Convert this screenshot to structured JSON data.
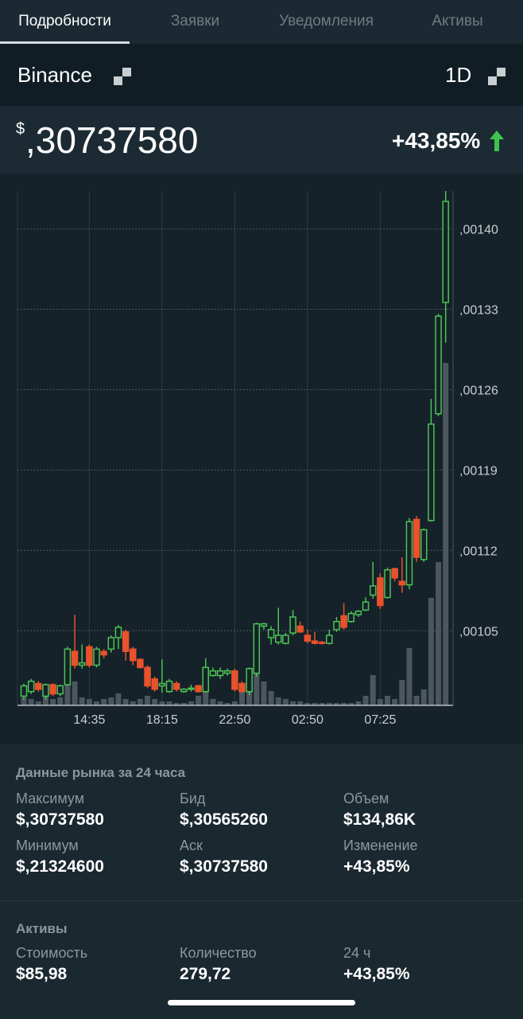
{
  "tabs": [
    "Подробности",
    "Заявки",
    "Уведомления",
    "Активы"
  ],
  "exchange": "Binance",
  "interval": "1D",
  "price": {
    "currency": "$",
    "value": ",30737580",
    "change": "+43,85%"
  },
  "chart_data": {
    "type": "candlestick",
    "categories": [
      null,
      null,
      null,
      null,
      null,
      null,
      null,
      null,
      null,
      "14:35",
      null,
      null,
      null,
      null,
      null,
      null,
      null,
      null,
      null,
      "18:15",
      null,
      null,
      null,
      null,
      null,
      null,
      null,
      null,
      null,
      "22:50",
      null,
      null,
      null,
      null,
      null,
      null,
      null,
      null,
      null,
      "02:50",
      null,
      null,
      null,
      null,
      null,
      null,
      null,
      null,
      null,
      "07:25",
      null,
      null,
      null,
      null,
      null,
      null,
      null,
      null,
      null
    ],
    "open": [
      0.000993,
      0.000997,
      0.001004,
      0.000993,
      0.001003,
      0.000995,
      0.001003,
      0.001032,
      0.00102,
      0.001036,
      0.00102,
      0.001032,
      0.001034,
      0.001044,
      0.001049,
      0.001034,
      0.001025,
      0.001018,
      0.001008,
      0.001002,
      0.000997,
      0.001004,
      0.000997,
      0.000999,
      0.001002,
      0.000997,
      0.001011,
      0.001011,
      0.001013,
      0.001015,
      0.001004,
      0.000997,
      0.001013,
      0.001054,
      0.001044,
      0.00104,
      0.001039,
      0.001048,
      0.001054,
      0.001046,
      0.001041,
      0.00104,
      0.001039,
      0.001051,
      0.001063,
      0.001058,
      0.001064,
      0.001068,
      0.001081,
      0.001096,
      0.001079,
      0.001104,
      0.001093,
      0.00109,
      0.001147,
      0.001112,
      0.001146,
      0.001239,
      0.001336
    ],
    "high": [
      0.001004,
      0.001008,
      0.001006,
      0.001004,
      0.001004,
      0.001003,
      0.001036,
      0.001064,
      0.001038,
      0.001038,
      0.001036,
      0.001034,
      0.001046,
      0.001055,
      0.001051,
      0.001036,
      0.001026,
      0.00102,
      0.00101,
      0.001025,
      0.001008,
      0.001006,
      0.001,
      0.001003,
      0.001003,
      0.001026,
      0.001018,
      0.001018,
      0.001017,
      0.001017,
      0.001006,
      0.001018,
      0.001057,
      0.001057,
      0.001054,
      0.00107,
      0.001048,
      0.001068,
      0.001058,
      0.001051,
      0.001049,
      0.001041,
      0.001051,
      0.001062,
      0.001074,
      0.001067,
      0.001068,
      0.001079,
      0.00111,
      0.0011,
      0.001105,
      0.001105,
      0.001114,
      0.001148,
      0.00115,
      0.001139,
      0.001252,
      0.001326,
      0.001433
    ],
    "low": [
      0.00099,
      0.000995,
      0.000997,
      0.00099,
      0.000993,
      0.000993,
      0.001002,
      0.001017,
      0.001017,
      0.001018,
      0.001018,
      0.001026,
      0.001031,
      0.001034,
      0.001024,
      0.00102,
      0.001017,
      0.001,
      0.000997,
      0.000996,
      0.000996,
      0.000997,
      0.000996,
      0.000997,
      0.000996,
      0.000996,
      0.00101,
      0.001008,
      0.001011,
      0.000997,
      0.000996,
      0.000994,
      0.00101,
      0.001051,
      0.001038,
      0.001038,
      0.001038,
      0.001046,
      0.001048,
      0.001039,
      0.001038,
      0.001038,
      0.001038,
      0.001049,
      0.001051,
      0.001057,
      0.001062,
      0.001067,
      0.001078,
      0.001069,
      0.001078,
      0.001093,
      0.001083,
      0.001086,
      0.00111,
      0.00111,
      0.001145,
      0.001237,
      0.001301
    ],
    "close": [
      0.001002,
      0.001006,
      0.000999,
      0.001003,
      0.000995,
      0.001002,
      0.001034,
      0.00102,
      0.001022,
      0.00102,
      0.001034,
      0.001029,
      0.001044,
      0.001053,
      0.001032,
      0.001024,
      0.001018,
      0.001002,
      0.000999,
      0.001004,
      0.001006,
      0.000999,
      0.000999,
      0.001,
      0.000997,
      0.001018,
      0.001015,
      0.001015,
      0.001015,
      0.000999,
      0.000997,
      0.001017,
      0.001056,
      0.001056,
      0.001051,
      0.001046,
      0.001046,
      0.001062,
      0.001049,
      0.001041,
      0.001039,
      0.001039,
      0.001046,
      0.001058,
      0.001053,
      0.001065,
      0.001067,
      0.001075,
      0.001089,
      0.001072,
      0.001103,
      0.001096,
      0.00109,
      0.001145,
      0.001114,
      0.001138,
      0.00123,
      0.001324,
      0.001424
    ],
    "volume": [
      10,
      8,
      5,
      12,
      8,
      10,
      50,
      30,
      10,
      8,
      5,
      8,
      10,
      15,
      8,
      5,
      8,
      12,
      8,
      5,
      5,
      3,
      3,
      5,
      12,
      18,
      8,
      5,
      3,
      5,
      20,
      25,
      40,
      30,
      18,
      10,
      8,
      5,
      5,
      3,
      3,
      3,
      3,
      3,
      3,
      3,
      5,
      12,
      38,
      8,
      12,
      8,
      32,
      72,
      12,
      20,
      135,
      180,
      430
    ],
    "up_color": "#4cc255",
    "down_color": "#e8522c",
    "volume_color": "#4b575d",
    "ylim": [
      0.000985,
      0.001433
    ],
    "yticks": [
      {
        "value": 0.00105,
        "label": ",00105"
      },
      {
        "value": 0.00112,
        "label": ",00112"
      },
      {
        "value": 0.00119,
        "label": ",00119"
      },
      {
        "value": 0.00126,
        "label": ",00126"
      },
      {
        "value": 0.00133,
        "label": ",00133"
      },
      {
        "value": 0.0014,
        "label": ",00140"
      }
    ],
    "grid": true
  },
  "market": {
    "title": "Данные рынка за 24 часа",
    "items": [
      {
        "label": "Максимум",
        "value": "$,30737580"
      },
      {
        "label": "Бид",
        "value": "$,30565260"
      },
      {
        "label": "Объем",
        "value": "$134,86K"
      },
      {
        "label": "Минимум",
        "value": "$,21324600"
      },
      {
        "label": "Аск",
        "value": "$,30737580"
      },
      {
        "label": "Изменение",
        "value": "+43,85%"
      }
    ]
  },
  "assets": {
    "title": "Активы",
    "items": [
      {
        "label": "Стоимость",
        "value": "$85,98"
      },
      {
        "label": "Количество",
        "value": "279,72"
      },
      {
        "label": "24 ч",
        "value": "+43,85%"
      }
    ]
  }
}
